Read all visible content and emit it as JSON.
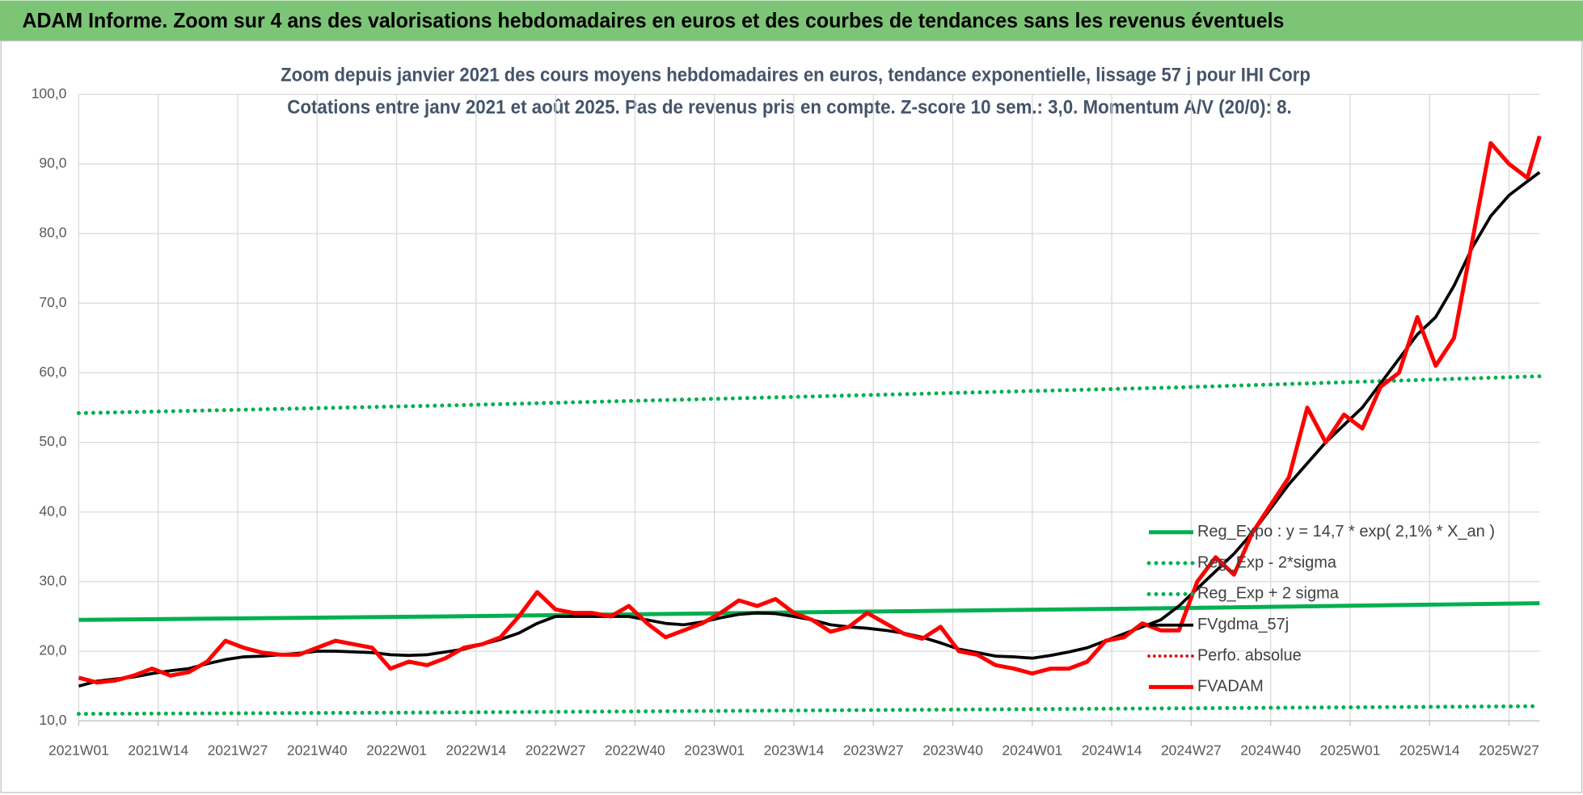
{
  "header": {
    "title": "ADAM Informe. Zoom sur 4 ans des valorisations hebdomadaires en euros et des courbes de tendances sans les revenus éventuels"
  },
  "chart_data": {
    "type": "line",
    "title": "Zoom depuis janvier 2021 des cours moyens hebdomadaires en euros, tendance exponentielle, lissage 57 j pour IHI Corp",
    "subtitle": "Cotations entre janv 2021 et août 2025.  Pas de revenus pris en compte. Z-score 10 sem.: 3,0. Momentum A/V (20/0): 8.",
    "xlim": [
      0,
      239
    ],
    "xticks": [
      {
        "value": 0,
        "label": "2021W01"
      },
      {
        "value": 13,
        "label": "2021W14"
      },
      {
        "value": 26,
        "label": "2021W27"
      },
      {
        "value": 39,
        "label": "2021W40"
      },
      {
        "value": 52,
        "label": "2022W01"
      },
      {
        "value": 65,
        "label": "2022W14"
      },
      {
        "value": 78,
        "label": "2022W27"
      },
      {
        "value": 91,
        "label": "2022W40"
      },
      {
        "value": 104,
        "label": "2023W01"
      },
      {
        "value": 117,
        "label": "2023W14"
      },
      {
        "value": 130,
        "label": "2023W27"
      },
      {
        "value": 143,
        "label": "2023W40"
      },
      {
        "value": 156,
        "label": "2024W01"
      },
      {
        "value": 169,
        "label": "2024W14"
      },
      {
        "value": 182,
        "label": "2024W27"
      },
      {
        "value": 195,
        "label": "2024W40"
      },
      {
        "value": 208,
        "label": "2025W01"
      },
      {
        "value": 221,
        "label": "2025W14"
      },
      {
        "value": 234,
        "label": "2025W27"
      }
    ],
    "ylim": [
      10,
      100
    ],
    "yticks": [
      {
        "value": 10,
        "label": "10,0"
      },
      {
        "value": 20,
        "label": "20,0"
      },
      {
        "value": 30,
        "label": "30,0"
      },
      {
        "value": 40,
        "label": "40,0"
      },
      {
        "value": 50,
        "label": "50,0"
      },
      {
        "value": 60,
        "label": "60,0"
      },
      {
        "value": 70,
        "label": "70,0"
      },
      {
        "value": 80,
        "label": "80,0"
      },
      {
        "value": 90,
        "label": "90,0"
      },
      {
        "value": 100,
        "label": "100,0"
      }
    ],
    "grid": true,
    "legend": "lower right",
    "series": [
      {
        "name": "Reg_Expo : y = 14,7 * exp( 2,1% *  X_an )",
        "color": "#00b050",
        "style": "solid",
        "width": 4,
        "x": [
          0,
          60,
          120,
          180,
          239
        ],
        "values": [
          24.5,
          25.0,
          25.6,
          26.2,
          26.9
        ]
      },
      {
        "name": "Reg_Exp - 2*sigma",
        "color": "#00b050",
        "style": "dotted",
        "width": 4,
        "x": [
          0,
          60,
          120,
          180,
          239
        ],
        "values": [
          11.0,
          11.2,
          11.5,
          11.8,
          12.1
        ]
      },
      {
        "name": "Reg_Exp + 2 sigma",
        "color": "#00b050",
        "style": "dotted",
        "width": 4,
        "x": [
          0,
          60,
          120,
          180,
          239
        ],
        "values": [
          54.2,
          55.3,
          56.6,
          57.9,
          59.5
        ]
      },
      {
        "name": "FVgdma_57j",
        "color": "#000000",
        "style": "solid",
        "width": 3,
        "x": [
          0,
          3,
          6,
          9,
          12,
          15,
          18,
          21,
          24,
          27,
          30,
          33,
          36,
          39,
          42,
          45,
          48,
          51,
          54,
          57,
          60,
          63,
          66,
          69,
          72,
          75,
          78,
          81,
          84,
          87,
          90,
          93,
          96,
          99,
          102,
          105,
          108,
          111,
          114,
          117,
          120,
          123,
          126,
          129,
          132,
          135,
          138,
          141,
          144,
          147,
          150,
          153,
          156,
          159,
          162,
          165,
          168,
          171,
          174,
          177,
          180,
          183,
          186,
          189,
          192,
          195,
          198,
          201,
          204,
          207,
          210,
          213,
          216,
          219,
          222,
          225,
          228,
          231,
          234,
          237,
          239
        ],
        "values": [
          15.0,
          15.7,
          16.0,
          16.3,
          16.8,
          17.2,
          17.5,
          18.2,
          18.8,
          19.2,
          19.3,
          19.5,
          19.7,
          20.0,
          20.0,
          19.9,
          19.8,
          19.5,
          19.4,
          19.5,
          19.9,
          20.3,
          21.0,
          21.7,
          22.6,
          24.0,
          25.0,
          25.0,
          25.0,
          25.0,
          25.0,
          24.5,
          24.0,
          23.8,
          24.2,
          24.8,
          25.3,
          25.5,
          25.4,
          25.0,
          24.5,
          23.8,
          23.5,
          23.3,
          23.0,
          22.6,
          22.0,
          21.2,
          20.3,
          19.8,
          19.3,
          19.2,
          19.0,
          19.4,
          19.9,
          20.5,
          21.5,
          22.5,
          23.5,
          24.5,
          26.5,
          29.0,
          31.5,
          34.0,
          37.0,
          40.5,
          44.0,
          47.0,
          50.0,
          52.5,
          55.0,
          58.5,
          62.0,
          65.5,
          68.0,
          72.5,
          78.0,
          82.5,
          85.5,
          87.5,
          88.8
        ]
      },
      {
        "name": "Perfo. absolue",
        "color": "#e00000",
        "style": "dotted",
        "width": 3,
        "x": [],
        "values": []
      },
      {
        "name": "FVADAM",
        "color": "#ff0000",
        "style": "solid",
        "width": 4,
        "x": [
          0,
          3,
          6,
          9,
          12,
          15,
          18,
          21,
          24,
          27,
          30,
          33,
          36,
          39,
          42,
          45,
          48,
          51,
          54,
          57,
          60,
          63,
          66,
          69,
          72,
          75,
          78,
          81,
          84,
          87,
          90,
          93,
          96,
          99,
          102,
          105,
          108,
          111,
          114,
          117,
          120,
          123,
          126,
          129,
          132,
          135,
          138,
          141,
          144,
          147,
          150,
          153,
          156,
          159,
          162,
          165,
          168,
          171,
          174,
          177,
          180,
          183,
          186,
          189,
          192,
          195,
          198,
          201,
          204,
          207,
          210,
          213,
          216,
          219,
          222,
          225,
          228,
          231,
          234,
          237,
          239
        ],
        "values": [
          16.2,
          15.5,
          15.8,
          16.5,
          17.5,
          16.5,
          17.0,
          18.5,
          21.5,
          20.5,
          19.8,
          19.5,
          19.5,
          20.5,
          21.5,
          21.0,
          20.5,
          17.5,
          18.5,
          18.0,
          19.0,
          20.5,
          21.0,
          22.0,
          25.0,
          28.5,
          26.0,
          25.5,
          25.5,
          25.0,
          26.5,
          24.0,
          22.0,
          23.0,
          24.0,
          25.5,
          27.3,
          26.5,
          27.5,
          25.5,
          24.5,
          22.8,
          23.5,
          25.5,
          24.0,
          22.5,
          21.8,
          23.5,
          20.0,
          19.5,
          18.0,
          17.5,
          16.8,
          17.5,
          17.5,
          18.5,
          21.5,
          22.0,
          24.0,
          23.0,
          23.0,
          30.0,
          33.5,
          31.0,
          37.0,
          41.0,
          45.0,
          55.0,
          50.0,
          54.0,
          52.0,
          58.0,
          60.0,
          68.0,
          61.0,
          65.0,
          79.0,
          93.0,
          90.0,
          88.0,
          94.0
        ]
      }
    ]
  }
}
